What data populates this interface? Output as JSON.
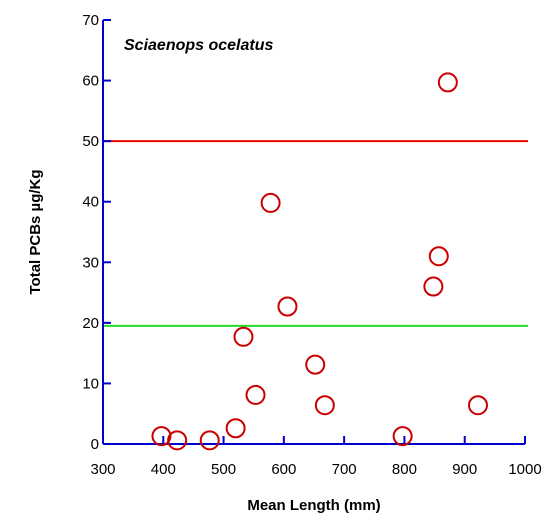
{
  "chart_data": {
    "type": "scatter",
    "xlabel": "Mean Length (mm)",
    "ylabel": "Total PCBs µg/Kg",
    "annotation": "Sciaenops ocelatus",
    "xlim": [
      300,
      1000
    ],
    "ylim": [
      0,
      70
    ],
    "x_ticks": [
      "300",
      "400",
      "500",
      "600",
      "700",
      "800",
      "900",
      "1000"
    ],
    "y_ticks": [
      "0",
      "10",
      "20",
      "30",
      "40",
      "50",
      "60",
      "70"
    ],
    "grid": false,
    "legend": "none",
    "colors": {
      "axis": "#0000cc",
      "points": "#cc0000",
      "threshold_high": "#ee0000",
      "threshold_low": "#22dd22"
    },
    "reference_lines": [
      {
        "y": 50,
        "color": "#ee0000"
      },
      {
        "y": 19.5,
        "color": "#22dd22"
      }
    ],
    "points": [
      {
        "x": 397,
        "y": 1.3
      },
      {
        "x": 423,
        "y": 0.6
      },
      {
        "x": 477,
        "y": 0.6
      },
      {
        "x": 520,
        "y": 2.6
      },
      {
        "x": 533,
        "y": 17.7
      },
      {
        "x": 553,
        "y": 8.1
      },
      {
        "x": 578,
        "y": 39.8
      },
      {
        "x": 606,
        "y": 22.7
      },
      {
        "x": 652,
        "y": 13.1
      },
      {
        "x": 668,
        "y": 6.4
      },
      {
        "x": 797,
        "y": 1.3
      },
      {
        "x": 848,
        "y": 26.0
      },
      {
        "x": 857,
        "y": 31.0
      },
      {
        "x": 872,
        "y": 59.7
      },
      {
        "x": 922,
        "y": 6.4
      }
    ]
  }
}
